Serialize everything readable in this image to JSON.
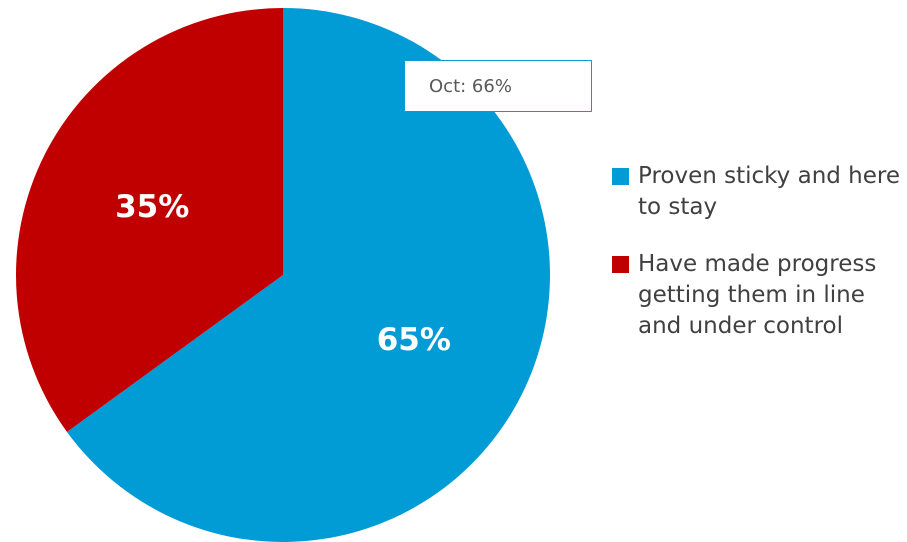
{
  "chart_data": {
    "type": "pie",
    "categories": [
      "Proven sticky and here to stay",
      "Have made progress getting them in line and under control"
    ],
    "values": [
      65,
      35
    ],
    "data_labels": [
      "65%",
      "35%"
    ],
    "colors": [
      "#019bd6",
      "#c00000"
    ],
    "legend_position": "right",
    "annotation": "Oct: 66%"
  }
}
